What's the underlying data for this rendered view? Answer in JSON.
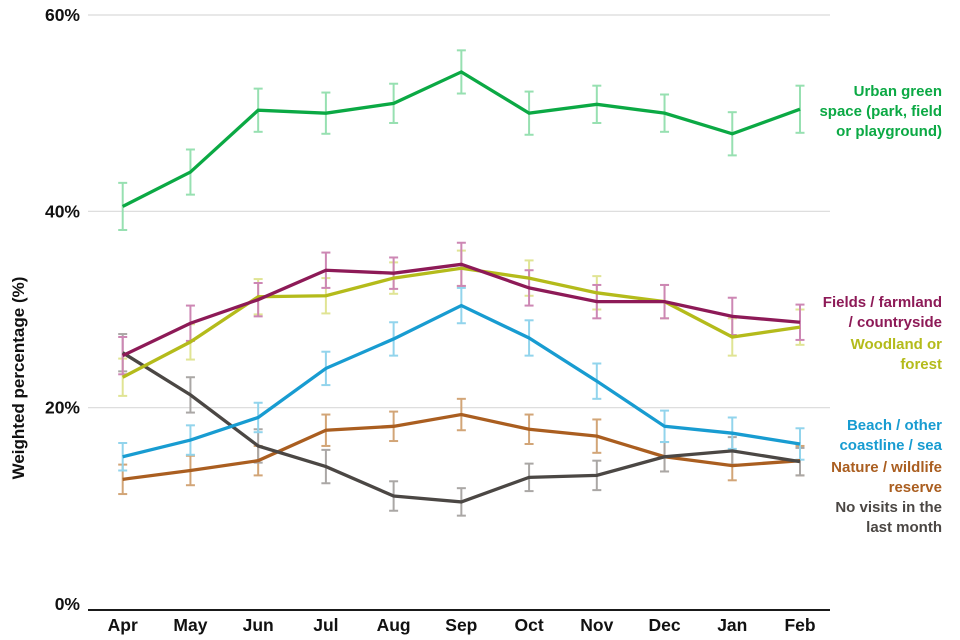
{
  "chart_data": {
    "type": "line",
    "title": "",
    "categories": [
      "Apr",
      "May",
      "Jun",
      "Jul",
      "Aug",
      "Sep",
      "Oct",
      "Nov",
      "Dec",
      "Jan",
      "Feb"
    ],
    "y_axis": {
      "label": "Weighted percentage (%)",
      "ticks": [
        {
          "value": 0,
          "label": "0%"
        },
        {
          "value": 20,
          "label": "20%"
        },
        {
          "value": 40,
          "label": "40%"
        },
        {
          "value": 60,
          "label": "60%"
        }
      ],
      "range": [
        0,
        62
      ],
      "gridlines_at": [
        20,
        40,
        60
      ],
      "grid": "horizontal light gray"
    },
    "error_bars": true,
    "legend_position": "right",
    "series": [
      {
        "id": "urban-green-space",
        "name": "Urban green space (park, field or playground)",
        "legend_lines": [
          "Urban green",
          "space (park, field",
          "or playground)"
        ],
        "color": "#0ba944",
        "error_color": "#97e0b1",
        "values": [
          40.5,
          44.0,
          50.3,
          50.0,
          51.0,
          54.2,
          50.0,
          50.9,
          50.0,
          47.9,
          50.4
        ],
        "errors": [
          2.4,
          2.3,
          2.2,
          2.1,
          2.0,
          2.2,
          2.2,
          1.9,
          1.9,
          2.2,
          2.4
        ]
      },
      {
        "id": "fields-farmland-countryside",
        "name": "Fields / farmland / countryside",
        "legend_lines": [
          "Fields / farmland",
          "/ countryside"
        ],
        "color": "#8d1a57",
        "error_color": "#cd87b4",
        "values": [
          25.3,
          28.6,
          31.0,
          34.0,
          33.7,
          34.6,
          32.2,
          30.8,
          30.8,
          29.3,
          28.7
        ],
        "errors": [
          1.9,
          1.8,
          1.7,
          1.8,
          1.6,
          2.2,
          1.8,
          1.7,
          1.7,
          1.9,
          1.8
        ]
      },
      {
        "id": "woodland-or-forest",
        "name": "Woodland or forest",
        "legend_lines": [
          "Woodland or",
          "forest"
        ],
        "color": "#b4bb1b",
        "error_color": "#e0e494",
        "values": [
          23.1,
          26.7,
          31.3,
          31.4,
          33.2,
          34.2,
          33.2,
          31.7,
          30.8,
          27.2,
          28.2
        ],
        "errors": [
          1.9,
          1.8,
          1.8,
          1.8,
          1.6,
          1.8,
          1.8,
          1.7,
          1.7,
          1.9,
          1.8
        ]
      },
      {
        "id": "beach-coastline-sea",
        "name": "Beach / other coastline / sea",
        "legend_lines": [
          "Beach / other",
          "coastline / sea"
        ],
        "color": "#189cd1",
        "error_color": "#92d4ec",
        "values": [
          15.0,
          16.7,
          19.0,
          24.0,
          27.0,
          30.4,
          27.1,
          22.7,
          18.1,
          17.4,
          16.3
        ],
        "errors": [
          1.4,
          1.5,
          1.5,
          1.7,
          1.7,
          1.8,
          1.8,
          1.8,
          1.6,
          1.6,
          1.6
        ]
      },
      {
        "id": "nature-wildlife-reserve",
        "name": "Nature / wildlife reserve",
        "legend_lines": [
          "Nature / wildlife",
          "reserve"
        ],
        "color": "#aa5e20",
        "error_color": "#d2a577",
        "values": [
          12.7,
          13.6,
          14.6,
          17.7,
          18.1,
          19.3,
          17.8,
          17.1,
          15.0,
          14.1,
          14.6
        ],
        "errors": [
          1.5,
          1.5,
          1.5,
          1.6,
          1.5,
          1.6,
          1.5,
          1.7,
          1.5,
          1.5,
          1.5
        ]
      },
      {
        "id": "no-visits-last-month",
        "name": "No visits in the last month",
        "legend_lines": [
          "No visits in the",
          "last month"
        ],
        "color": "#4b4744",
        "error_color": "#aaa7a5",
        "values": [
          25.6,
          21.3,
          16.1,
          14.0,
          11.0,
          10.4,
          12.9,
          13.1,
          15.0,
          15.6,
          14.5
        ],
        "errors": [
          1.9,
          1.8,
          1.7,
          1.7,
          1.5,
          1.4,
          1.4,
          1.5,
          1.5,
          1.4,
          1.4
        ]
      }
    ]
  }
}
